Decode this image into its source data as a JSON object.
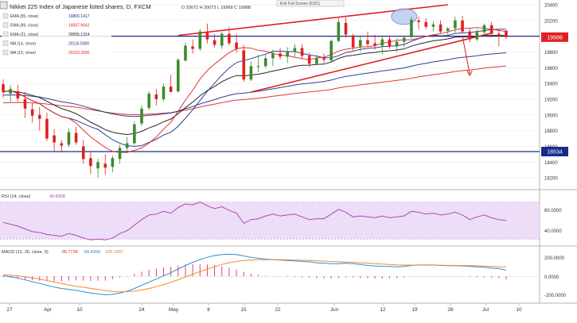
{
  "header": {
    "title": "Nikkei 225 Index of Japanese listed shares, D, FXCM",
    "ohlc_text": "O 20072  H 20073  L 19968  C 19988",
    "exit_fullscreen_label": "Exit Full Screen (ESC)"
  },
  "indicator_legend": [
    {
      "label": "EMA (55, close)",
      "value": "19800.1417",
      "color": "#1a2a8c"
    },
    {
      "label": "EMA (89, close)",
      "value": "19587.9642",
      "color": "#e02020"
    },
    {
      "label": "EMA (21, close)",
      "value": "20055.1314",
      "color": "#111111"
    },
    {
      "label": "MA (14, close)",
      "value": "20116.5000",
      "color": "#1a2a8c"
    },
    {
      "label": "MA (10, close)",
      "value": "20103.3000",
      "color": "#e02020"
    }
  ],
  "price_badges": {
    "last": "19988",
    "support": "18534"
  },
  "rsi_panel": {
    "label": "RSI (14, close)",
    "value": "49.6908",
    "ticks": [
      "60.0000",
      "40.0000"
    ]
  },
  "macd_panel": {
    "label": "MACD (12, 26, close, 9)",
    "values": [
      "-35.7728",
      "69.4269",
      "105.1997"
    ],
    "value_colors": [
      "#e02020",
      "#1e7fd0",
      "#e07820"
    ],
    "ticks": [
      "200.0000",
      "0.0000",
      "-200.0000"
    ]
  },
  "colors": {
    "bull": "#3d8a2e",
    "bear": "#e02020",
    "horizontal": "#1a2a8c",
    "trend": "#e02020",
    "rsi": "#b04ab0",
    "rsi_band": "#e9d4f5",
    "macd": "#2f8fd8",
    "signal": "#f08a30",
    "hist": "#e0406a"
  },
  "chart_data": {
    "type": "candlestick",
    "y_axis": {
      "ticks": [
        20400,
        20200,
        20000,
        19800,
        19600,
        19400,
        19200,
        19000,
        18800,
        18600,
        18400,
        18200
      ],
      "range": [
        18080,
        20420
      ]
    },
    "x_axis_labels": [
      "27",
      "Apr",
      "10",
      "24",
      "May",
      "8",
      "15",
      "22",
      "Jun",
      "12",
      "19",
      "26",
      "Jul",
      "10"
    ],
    "horizontal_lines": [
      20000,
      18534
    ],
    "candles": [
      [
        19390,
        19450,
        19220,
        19290
      ],
      [
        19270,
        19380,
        19150,
        19330
      ],
      [
        19300,
        19380,
        19170,
        19210
      ],
      [
        19200,
        19290,
        18960,
        19080
      ],
      [
        19070,
        19150,
        18900,
        18990
      ],
      [
        19000,
        19100,
        18800,
        18950
      ],
      [
        18950,
        19030,
        18670,
        18700
      ],
      [
        18740,
        18820,
        18540,
        18650
      ],
      [
        18640,
        18680,
        18520,
        18610
      ],
      [
        18620,
        18830,
        18590,
        18780
      ],
      [
        18770,
        18850,
        18620,
        18650
      ],
      [
        18600,
        18680,
        18380,
        18440
      ],
      [
        18450,
        18540,
        18250,
        18350
      ],
      [
        18320,
        18440,
        18200,
        18400
      ],
      [
        18380,
        18500,
        18240,
        18330
      ],
      [
        18340,
        18480,
        18270,
        18450
      ],
      [
        18440,
        18620,
        18380,
        18580
      ],
      [
        18580,
        18720,
        18520,
        18640
      ],
      [
        18640,
        18920,
        18620,
        18880
      ],
      [
        18890,
        19120,
        18860,
        19080
      ],
      [
        19090,
        19300,
        19060,
        19270
      ],
      [
        19260,
        19330,
        19120,
        19200
      ],
      [
        19200,
        19400,
        19170,
        19360
      ],
      [
        19360,
        19510,
        19290,
        19290
      ],
      [
        19300,
        19720,
        19280,
        19700
      ],
      [
        19690,
        19920,
        19680,
        19880
      ],
      [
        19870,
        19960,
        19780,
        19840
      ],
      [
        19840,
        20090,
        19810,
        20060
      ],
      [
        20060,
        20160,
        19910,
        19960
      ],
      [
        19950,
        20030,
        19860,
        19890
      ],
      [
        19880,
        20060,
        19840,
        20030
      ],
      [
        20030,
        20120,
        19880,
        19910
      ],
      [
        19920,
        20030,
        19790,
        19840
      ],
      [
        19820,
        19890,
        19420,
        19450
      ],
      [
        19450,
        19680,
        19430,
        19620
      ],
      [
        19620,
        19760,
        19540,
        19620
      ],
      [
        19620,
        19770,
        19600,
        19720
      ],
      [
        19720,
        19830,
        19620,
        19780
      ],
      [
        19780,
        19850,
        19700,
        19740
      ],
      [
        19740,
        19860,
        19660,
        19800
      ],
      [
        19800,
        19900,
        19740,
        19850
      ],
      [
        19850,
        19900,
        19710,
        19750
      ],
      [
        19750,
        19790,
        19610,
        19650
      ],
      [
        19650,
        19760,
        19640,
        19720
      ],
      [
        19720,
        19780,
        19660,
        19700
      ],
      [
        19690,
        19960,
        19690,
        19940
      ],
      [
        19940,
        20230,
        19920,
        20180
      ],
      [
        20170,
        20240,
        19980,
        20020
      ],
      [
        20010,
        20030,
        19820,
        19860
      ],
      [
        19870,
        20000,
        19800,
        19950
      ],
      [
        19950,
        20060,
        19870,
        19900
      ],
      [
        19910,
        20020,
        19830,
        19880
      ],
      [
        19880,
        20000,
        19770,
        19960
      ],
      [
        19960,
        20000,
        19840,
        19870
      ],
      [
        19870,
        19970,
        19800,
        19930
      ],
      [
        19930,
        20000,
        19860,
        19980
      ],
      [
        19990,
        20250,
        19970,
        20210
      ],
      [
        20200,
        20250,
        20090,
        20180
      ],
      [
        20180,
        20230,
        20090,
        20120
      ],
      [
        20120,
        20190,
        20060,
        20150
      ],
      [
        20150,
        20200,
        20030,
        20060
      ],
      [
        20070,
        20120,
        20000,
        20100
      ],
      [
        20100,
        20250,
        20040,
        20200
      ],
      [
        20200,
        20260,
        20040,
        20060
      ],
      [
        20060,
        20110,
        19920,
        19960
      ],
      [
        19960,
        20090,
        19940,
        20050
      ],
      [
        20050,
        20160,
        20000,
        20140
      ],
      [
        20140,
        20180,
        19990,
        20030
      ],
      [
        20030,
        20080,
        19870,
        20000
      ],
      [
        20072,
        20073,
        19968,
        19988
      ]
    ],
    "rsi_values": [
      48,
      46,
      44,
      41,
      38,
      37,
      35,
      34,
      33,
      36,
      34,
      31,
      29,
      30,
      29,
      31,
      36,
      39,
      45,
      51,
      56,
      57,
      60,
      58,
      64,
      68,
      67,
      70,
      66,
      63,
      65,
      61,
      58,
      47,
      51,
      52,
      55,
      57,
      55,
      56,
      57,
      54,
      51,
      52,
      52,
      57,
      62,
      59,
      54,
      55,
      54,
      53,
      55,
      53,
      54,
      55,
      60,
      59,
      57,
      58,
      56,
      57,
      59,
      56,
      51,
      54,
      56,
      53,
      51,
      50
    ],
    "macd_line": [
      5,
      -5,
      -20,
      -40,
      -60,
      -80,
      -100,
      -120,
      -135,
      -145,
      -155,
      -170,
      -185,
      -195,
      -205,
      -200,
      -185,
      -165,
      -135,
      -100,
      -65,
      -30,
      5,
      40,
      80,
      120,
      155,
      185,
      210,
      230,
      240,
      245,
      240,
      225,
      210,
      200,
      190,
      185,
      180,
      175,
      170,
      165,
      160,
      150,
      145,
      140,
      140,
      145,
      140,
      130,
      120,
      115,
      110,
      108,
      105,
      110,
      120,
      125,
      125,
      125,
      120,
      118,
      117,
      115,
      110,
      105,
      100,
      92,
      85,
      70
    ],
    "signal_line": [
      15,
      12,
      5,
      -5,
      -18,
      -32,
      -48,
      -64,
      -80,
      -96,
      -110,
      -122,
      -134,
      -146,
      -158,
      -168,
      -172,
      -170,
      -164,
      -152,
      -136,
      -116,
      -92,
      -66,
      -38,
      -8,
      22,
      52,
      80,
      106,
      130,
      150,
      165,
      175,
      180,
      183,
      184,
      184,
      183,
      182,
      180,
      178,
      176,
      172,
      168,
      164,
      160,
      157,
      154,
      150,
      145,
      140,
      135,
      130,
      126,
      124,
      123,
      123,
      123,
      123,
      122,
      121,
      120,
      119,
      118,
      116,
      114,
      110,
      106,
      105
    ]
  }
}
